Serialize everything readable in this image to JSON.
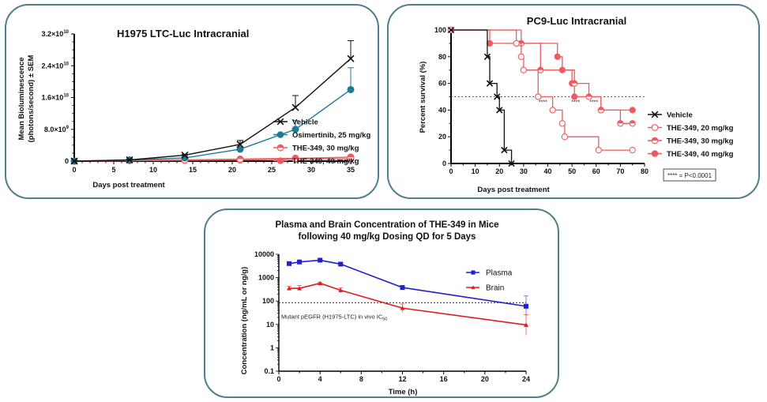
{
  "chart_data": [
    {
      "type": "line",
      "title": "H1975 LTC-Luc Intracranial",
      "xlabel": "Days post treatment",
      "ylabel": "Mean Bioluminescence (photons/second) ± SEM",
      "ylabel_lines": [
        "Mean Bioluminescence",
        "(photons/second) ± SEM"
      ],
      "xlim": [
        0,
        35
      ],
      "ylim": [
        0,
        32000000000.0
      ],
      "x_ticks": [
        0,
        5,
        10,
        15,
        20,
        25,
        30,
        35
      ],
      "x_tick_labels": [
        "0",
        "5",
        "10",
        "15",
        "20",
        "25",
        "30",
        "35"
      ],
      "y_ticks": [
        0,
        8000000000.0,
        16000000000.0,
        24000000000.0,
        32000000000.0
      ],
      "y_tick_labels": [
        {
          "mant": "0",
          "exp": ""
        },
        {
          "mant": "8.0×10",
          "exp": "9"
        },
        {
          "mant": "1.6×10",
          "exp": "10"
        },
        {
          "mant": "2.4×10",
          "exp": "10"
        },
        {
          "mant": "3.2×10",
          "exp": "10"
        }
      ],
      "legend_position": "right",
      "x": [
        0,
        7,
        14,
        21,
        28,
        35
      ],
      "series": [
        {
          "name": "Vehicle",
          "color": "#111111",
          "marker": "x",
          "values": [
            0,
            300000000.0,
            1500000000.0,
            4200000000.0,
            13500000000.0,
            25800000000.0
          ],
          "sem": [
            0,
            100000000.0,
            200000000.0,
            1000000000.0,
            3000000000.0,
            4500000000.0
          ]
        },
        {
          "name": "Osimertinib, 25 mg/kg",
          "color": "#1f7a94",
          "marker": "filled-circle",
          "values": [
            0,
            300000000.0,
            800000000.0,
            3000000000.0,
            8000000000.0,
            18000000000.0
          ],
          "sem": [
            0,
            100000000.0,
            100000000.0,
            400000000.0,
            2200000000.0,
            5500000000.0
          ]
        },
        {
          "name": "THE-349, 30 mg/kg",
          "color": "#f05a5f",
          "marker": "half-circle",
          "values": [
            0,
            200000000.0,
            300000000.0,
            500000000.0,
            700000000.0,
            1000000000.0
          ],
          "sem": [
            0,
            0,
            0,
            0,
            0,
            0
          ]
        },
        {
          "name": "THE-349, 40 mg/kg",
          "color": "#f05a5f",
          "marker": "filled-circle",
          "values": [
            0,
            100000000.0,
            200000000.0,
            300000000.0,
            500000000.0,
            600000000.0
          ],
          "sem": [
            0,
            0,
            0,
            0,
            0,
            0
          ]
        }
      ]
    },
    {
      "type": "line",
      "subtype": "kaplan-meier",
      "title": "PC9-Luc Intracranial",
      "xlabel": "Days post treatment",
      "ylabel": "Percent survival (%)",
      "xlim": [
        0,
        80
      ],
      "ylim": [
        0,
        100
      ],
      "x_ticks": [
        0,
        10,
        20,
        30,
        40,
        50,
        60,
        70,
        80
      ],
      "y_ticks": [
        0,
        20,
        40,
        60,
        80,
        100
      ],
      "reference_line": {
        "y": 50,
        "style": "dotted"
      },
      "legend_position": "right",
      "annotation": "**** = P<0.0001",
      "significance_marks": [
        {
          "x": 38,
          "label": "****"
        },
        {
          "x": 51.5,
          "label": "****"
        },
        {
          "x": 59,
          "label": "****"
        }
      ],
      "series": [
        {
          "name": "Vehicle",
          "color": "#111111",
          "marker": "x",
          "steps": [
            [
              0,
              100
            ],
            [
              15,
              80
            ],
            [
              16,
              60
            ],
            [
              19,
              50
            ],
            [
              20,
              40
            ],
            [
              22,
              10
            ],
            [
              25,
              0
            ]
          ],
          "end": 25
        },
        {
          "name": "THE-349, 20 mg/kg",
          "color": "#f05a5f",
          "marker": "open-circle",
          "steps": [
            [
              0,
              100
            ],
            [
              27,
              90
            ],
            [
              29,
              80
            ],
            [
              30,
              70
            ],
            [
              36,
              50
            ],
            [
              42,
              40
            ],
            [
              46,
              30
            ],
            [
              47,
              20
            ],
            [
              61,
              10
            ]
          ],
          "end": 75
        },
        {
          "name": "THE-349, 30 mg/kg",
          "color": "#f05a5f",
          "marker": "half-circle",
          "steps": [
            [
              0,
              100
            ],
            [
              29,
              90
            ],
            [
              37,
              70
            ],
            [
              51,
              60
            ],
            [
              57,
              50
            ],
            [
              62,
              40
            ],
            [
              70,
              30
            ]
          ],
          "end": 75
        },
        {
          "name": "THE-349, 40 mg/kg",
          "color": "#f05a5f",
          "marker": "filled-circle",
          "steps": [
            [
              0,
              100
            ],
            [
              16,
              90
            ],
            [
              44,
              80
            ],
            [
              46,
              70
            ],
            [
              50,
              60
            ],
            [
              51,
              50
            ],
            [
              62,
              40
            ]
          ],
          "end": 75
        }
      ]
    },
    {
      "type": "line",
      "title_lines": [
        "Plasma and Brain Concentration of THE-349 in Mice",
        "following 40 mg/kg Dosing QD for 5 Days"
      ],
      "title": "Plasma and Brain Concentration of THE-349 in Mice following 40 mg/kg Dosing QD for 5 Days",
      "xlabel": "Time (h)",
      "ylabel": "Concentration (ng/mL or ng/g)",
      "yscale": "log",
      "xlim": [
        0,
        24
      ],
      "ylim": [
        0.1,
        10000
      ],
      "x_ticks": [
        0,
        4,
        8,
        12,
        16,
        20,
        24
      ],
      "y_ticks": [
        0.1,
        1,
        10,
        100,
        1000,
        10000
      ],
      "y_tick_labels": [
        "0.1",
        "1",
        "10",
        "100",
        "1000",
        "10000"
      ],
      "legend_position": "top-right",
      "reference_line": {
        "y": 85,
        "style": "dashed",
        "label": "Mutant pEGFR (H1975-LTC) in vivo IC",
        "label_sub": "50"
      },
      "x": [
        1,
        2,
        4,
        6,
        12,
        24
      ],
      "series": [
        {
          "name": "Plasma",
          "color": "#1f1fd6",
          "marker": "square",
          "values": [
            4000,
            4700,
            5600,
            3800,
            380,
            60
          ],
          "err_upper": [
            4600,
            5200,
            6200,
            4400,
            440,
            165
          ]
        },
        {
          "name": "Brain",
          "color": "#e01b1b",
          "marker": "triangle",
          "values": [
            350,
            350,
            580,
            290,
            50,
            9.5
          ],
          "err_upper": [
            430,
            460,
            640,
            370,
            75,
            26
          ]
        }
      ]
    }
  ]
}
